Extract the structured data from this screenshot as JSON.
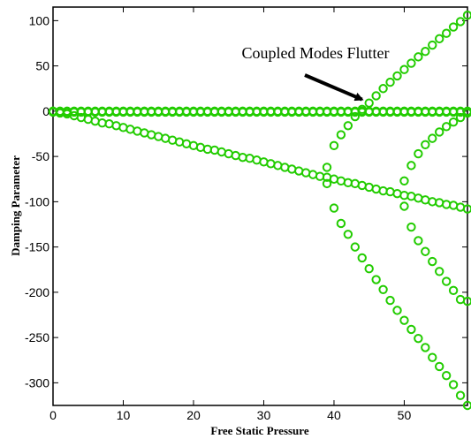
{
  "chart_data": {
    "type": "scatter",
    "title": "",
    "xlabel": "Free Static Pressure",
    "ylabel": "Damping Parameter",
    "xlim": [
      0,
      59
    ],
    "ylim": [
      -325,
      115
    ],
    "x_ticks": [
      0,
      10,
      20,
      30,
      40,
      50
    ],
    "y_ticks": [
      100,
      50,
      0,
      -50,
      -100,
      -150,
      -200,
      -250,
      -300
    ],
    "x_tick_labels": [
      "0",
      "10",
      "20",
      "30",
      "40",
      "50"
    ],
    "y_tick_labels": [
      "100",
      "50",
      "0",
      "-50",
      "-100",
      "-150",
      "-200",
      "-250",
      "-300"
    ],
    "grid": false,
    "legend": "none",
    "marker": "open-circle",
    "marker_color": "#22cc00",
    "x": [
      0,
      1,
      2,
      3,
      4,
      5,
      6,
      7,
      8,
      9,
      10,
      11,
      12,
      13,
      14,
      15,
      16,
      17,
      18,
      19,
      20,
      21,
      22,
      23,
      24,
      25,
      26,
      27,
      28,
      29,
      30,
      31,
      32,
      33,
      34,
      35,
      36,
      37,
      38,
      39,
      40,
      41,
      42,
      43,
      44,
      45,
      46,
      47,
      48,
      49,
      50,
      51,
      52,
      53,
      54,
      55,
      56,
      57,
      58,
      59
    ],
    "series": [
      {
        "values": [
          0,
          -1,
          -3,
          -5,
          -7,
          -9,
          -11,
          -13,
          -14,
          -16,
          -18,
          -20,
          -22,
          -24,
          -26,
          -28,
          -30,
          -32,
          -34,
          -36,
          -38,
          -40,
          -42,
          -43,
          -45,
          -47,
          -49,
          -51,
          -52,
          -54,
          -56,
          -58,
          -60,
          -62,
          -64,
          -66,
          -68,
          -70,
          -72,
          -73,
          -75,
          -77,
          -79,
          -80,
          -82,
          -84,
          -86,
          -88,
          -89,
          -91,
          -93,
          -94,
          -96,
          -98,
          -100,
          -101,
          -103,
          -104,
          -106,
          -108
        ]
      },
      {
        "values": [
          0,
          0,
          0,
          0,
          0,
          0,
          0,
          0,
          0,
          0,
          0,
          0,
          0,
          0,
          0,
          0,
          0,
          0,
          0,
          0,
          0,
          0,
          0,
          0,
          0,
          0,
          0,
          0,
          0,
          0,
          0,
          0,
          0,
          0,
          0,
          0,
          0,
          0,
          0,
          0,
          0,
          0,
          0,
          0,
          0,
          0,
          0,
          0,
          0,
          0,
          0,
          0,
          0,
          0,
          0,
          0,
          0,
          0,
          0,
          0
        ]
      },
      {
        "values": [
          -1,
          -2,
          -1,
          -1,
          -1,
          -1,
          -1,
          -1,
          -1,
          -1,
          -1,
          -1,
          -1,
          -1,
          -1,
          -1,
          -1,
          -1,
          -1,
          -1,
          -1,
          -1,
          -1,
          -1,
          -1,
          -1,
          -1,
          -1,
          -1,
          -1,
          -1,
          -1,
          -1,
          -1,
          -1,
          -1,
          -1,
          -1,
          -1,
          -1,
          -1,
          -1,
          -1,
          -1,
          -1,
          -1,
          -1,
          -1,
          -1,
          -1,
          -1,
          -1,
          -1,
          -1,
          -1,
          -1,
          -1,
          -1,
          -1,
          -1
        ]
      },
      {
        "x": [
          39,
          40,
          41,
          42,
          43,
          44,
          45,
          46,
          47,
          48,
          49,
          50,
          51,
          52,
          53,
          54,
          55,
          56,
          57,
          58,
          59
        ],
        "values": [
          -62,
          -38,
          -26,
          -16,
          -6,
          2,
          9,
          17,
          25,
          32,
          39,
          46,
          53,
          60,
          66,
          73,
          80,
          86,
          93,
          99,
          106
        ]
      },
      {
        "x": [
          39,
          40,
          41,
          42,
          43,
          44,
          45,
          46,
          47,
          48,
          49,
          50,
          51,
          52,
          53,
          54,
          55,
          56,
          57,
          58,
          59
        ],
        "values": [
          -80,
          -107,
          -124,
          -136,
          -150,
          -162,
          -174,
          -186,
          -197,
          -209,
          -220,
          -231,
          -241,
          -251,
          -261,
          -272,
          -282,
          -292,
          -302,
          -314,
          -325
        ]
      },
      {
        "x": [
          50,
          51,
          52,
          53,
          54,
          55,
          56,
          57,
          58,
          59
        ],
        "values": [
          -77,
          -60,
          -47,
          -37,
          -30,
          -23,
          -17,
          -12,
          -7,
          -2
        ]
      },
      {
        "x": [
          50,
          51,
          52,
          53,
          54,
          55,
          56,
          57,
          58,
          59
        ],
        "values": [
          -105,
          -128,
          -143,
          -155,
          -166,
          -177,
          -188,
          -198,
          -208,
          -210
        ]
      }
    ],
    "annotations": [
      {
        "text": "Coupled Modes Flutter",
        "arrow_to_x": 44.5,
        "arrow_to_y": 9
      }
    ]
  }
}
